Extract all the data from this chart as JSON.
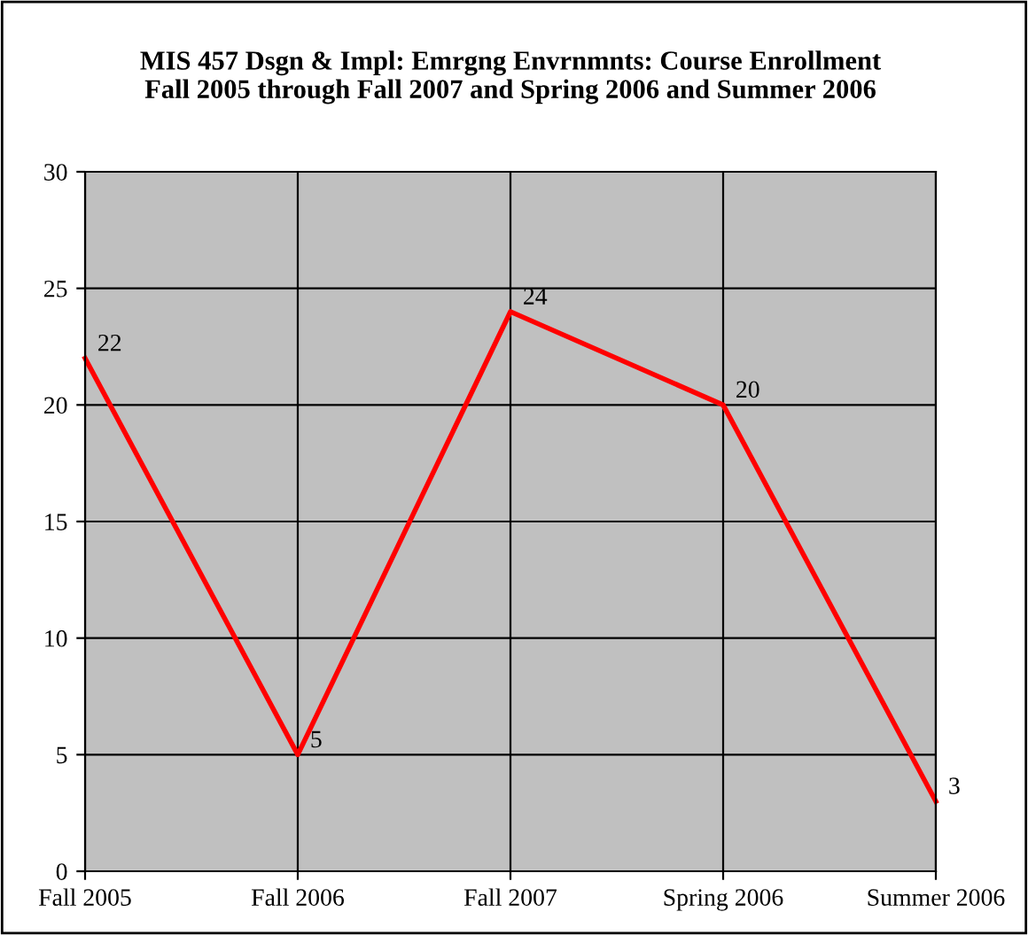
{
  "chart_data": {
    "type": "line",
    "title": "MIS 457 Dsgn & Impl: Emrgng Envrnmnts: Course Enrollment\nFall 2005 through Fall 2007 and Spring 2006 and Summer 2006",
    "categories": [
      "Fall 2005",
      "Fall 2006",
      "Fall 2007",
      "Spring 2006",
      "Summer 2006"
    ],
    "series": [
      {
        "color": "#ff0000",
        "values": [
          22,
          5,
          24,
          20,
          3
        ]
      }
    ],
    "ylim": [
      0,
      30
    ],
    "yticks": [
      0,
      5,
      10,
      15,
      20,
      25,
      30
    ],
    "grid": true,
    "data_labels": true,
    "marker": "none",
    "line_style": "solid"
  }
}
